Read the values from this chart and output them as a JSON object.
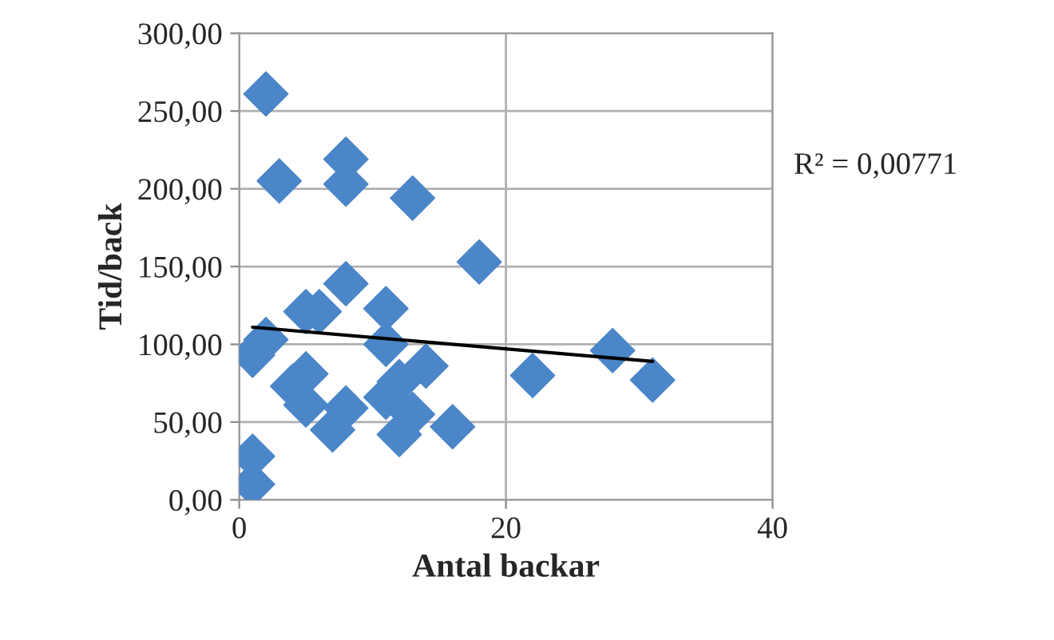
{
  "chart_data": {
    "type": "scatter",
    "xlabel": "Antal backar",
    "ylabel": "Tid/back",
    "annotations": [
      "R² = 0,00771"
    ],
    "marker": "diamond",
    "grid": true,
    "xlim": [
      0,
      40
    ],
    "xticks": [
      0,
      20,
      40
    ],
    "ylim": [
      0,
      300
    ],
    "yticks": [
      {
        "value": 0,
        "label": "0,00"
      },
      {
        "value": 50,
        "label": "50,00"
      },
      {
        "value": 100,
        "label": "100,00"
      },
      {
        "value": 150,
        "label": "150,00"
      },
      {
        "value": 200,
        "label": "200,00"
      },
      {
        "value": 250,
        "label": "250,00"
      },
      {
        "value": 300,
        "label": "300,00"
      }
    ],
    "series": [
      {
        "color": "#4a86c8",
        "x": [
          2,
          3,
          8,
          8,
          13,
          18,
          8,
          11,
          6,
          5,
          2,
          1,
          11,
          5,
          4,
          5,
          14,
          12,
          11,
          8,
          7,
          13,
          12,
          16,
          1,
          1,
          22,
          28,
          31
        ],
        "values": [
          261,
          205,
          219,
          203,
          194,
          153,
          139,
          123,
          121,
          121,
          103,
          93,
          100,
          81,
          73,
          61,
          86,
          76,
          66,
          59,
          45,
          55,
          42,
          47,
          28,
          10,
          80,
          96,
          77
        ]
      },
      {
        "type": "line",
        "color": "#000000",
        "marker": "none",
        "x": [
          1,
          31
        ],
        "values": [
          111,
          89
        ]
      }
    ]
  }
}
